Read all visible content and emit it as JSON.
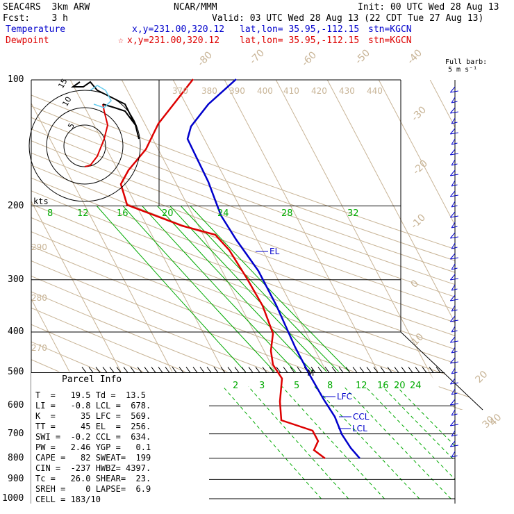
{
  "header": {
    "model": "SEAC4RS  3km ARW",
    "org": "NCAR/MMM",
    "init": "Init: 00 UTC Wed 28 Aug 13",
    "fcst": "Fcst:    3 h",
    "valid": "Valid: 03 UTC Wed 28 Aug 13 (22 CDT Tue 27 Aug 13)",
    "temp_label": "Temperature",
    "temp_xy": "x,y=231.00,320.12",
    "temp_latlon": "lat,lon= 35.95,-112.15",
    "temp_stn": "stn=KGCN",
    "dew_label": "Dewpoint",
    "dew_xy": "x,y=231.00,320.12",
    "dew_latlon": "lat,lon= 35.95,-112.15",
    "dew_stn": "stn=KGCN",
    "barb_label_1": "Full barb:",
    "barb_label_2": "5 m s⁻¹"
  },
  "colors": {
    "temperature": "#0000cc",
    "dewpoint": "#dd0000",
    "mixing": "#00aa00",
    "theta": "#c8b496",
    "hodo": "#000000",
    "hodo_alt": "#66ccee"
  },
  "parcel_info": {
    "title": "Parcel Info",
    "rows": [
      "T  =   19.5 Td =  13.5",
      "LI =   -0.8 LCL =  678.",
      "K  =     35 LFC =  569.",
      "TT =     45 EL  =  256.",
      "SWI =  -0.2 CCL =  634.",
      "PW =   2.46 YGP =   0.1",
      "CAPE =   82 SWEAT=  199",
      "CIN =  -237 HWBZ= 4397.",
      "Tc =   26.0 SHEAR=  23.",
      "SREH =    0 LAPSE=  6.9",
      "CELL = 183/10"
    ]
  },
  "chart_data": {
    "type": "line",
    "title": "",
    "pressure_levels": [
      100,
      200,
      300,
      400,
      500,
      600,
      700,
      800,
      900,
      1000
    ],
    "isotherm_labels": [
      "-80",
      "-70",
      "-60",
      "-50",
      "-40",
      "-30",
      "-20",
      "-10",
      "0",
      "10",
      "20",
      "30",
      "40"
    ],
    "theta_labels": [
      "370",
      "380",
      "390",
      "400",
      "410",
      "420",
      "430",
      "440",
      "290",
      "280",
      "270"
    ],
    "mixing_ratio_labels_upper": [
      "8",
      "12",
      "16",
      "20",
      "24",
      "28",
      "32"
    ],
    "mixing_ratio_labels_lower": [
      "2",
      "3",
      "5",
      "8",
      "12",
      "16",
      "20",
      "24"
    ],
    "kts_label": "kts",
    "hodo_rings": [
      "5",
      "10",
      "15"
    ],
    "markers": [
      {
        "label": "EL",
        "p": 256
      },
      {
        "label": "LFC",
        "p": 569
      },
      {
        "label": "CCL",
        "p": 634
      },
      {
        "label": "LCL",
        "p": 678
      },
      {
        "label": "M",
        "p": 500
      }
    ],
    "series": [
      {
        "name": "Temperature",
        "points": [
          [
            -55,
            100
          ],
          [
            -62,
            150
          ],
          [
            -52,
            200
          ],
          [
            -40,
            250
          ],
          [
            -31,
            300
          ],
          [
            -19,
            400
          ],
          [
            -11,
            500
          ],
          [
            -3,
            600
          ],
          [
            3,
            650
          ],
          [
            9,
            700
          ],
          [
            19.5,
            780
          ]
        ]
      },
      {
        "name": "Dewpoint",
        "points": [
          [
            -66,
            100
          ],
          [
            -76,
            150
          ],
          [
            -80,
            190
          ],
          [
            -47,
            250
          ],
          [
            -38,
            300
          ],
          [
            -27,
            400
          ],
          [
            -22,
            470
          ],
          [
            -17,
            550
          ],
          [
            -18,
            620
          ],
          [
            -6,
            700
          ],
          [
            13.5,
            780
          ]
        ]
      }
    ]
  }
}
